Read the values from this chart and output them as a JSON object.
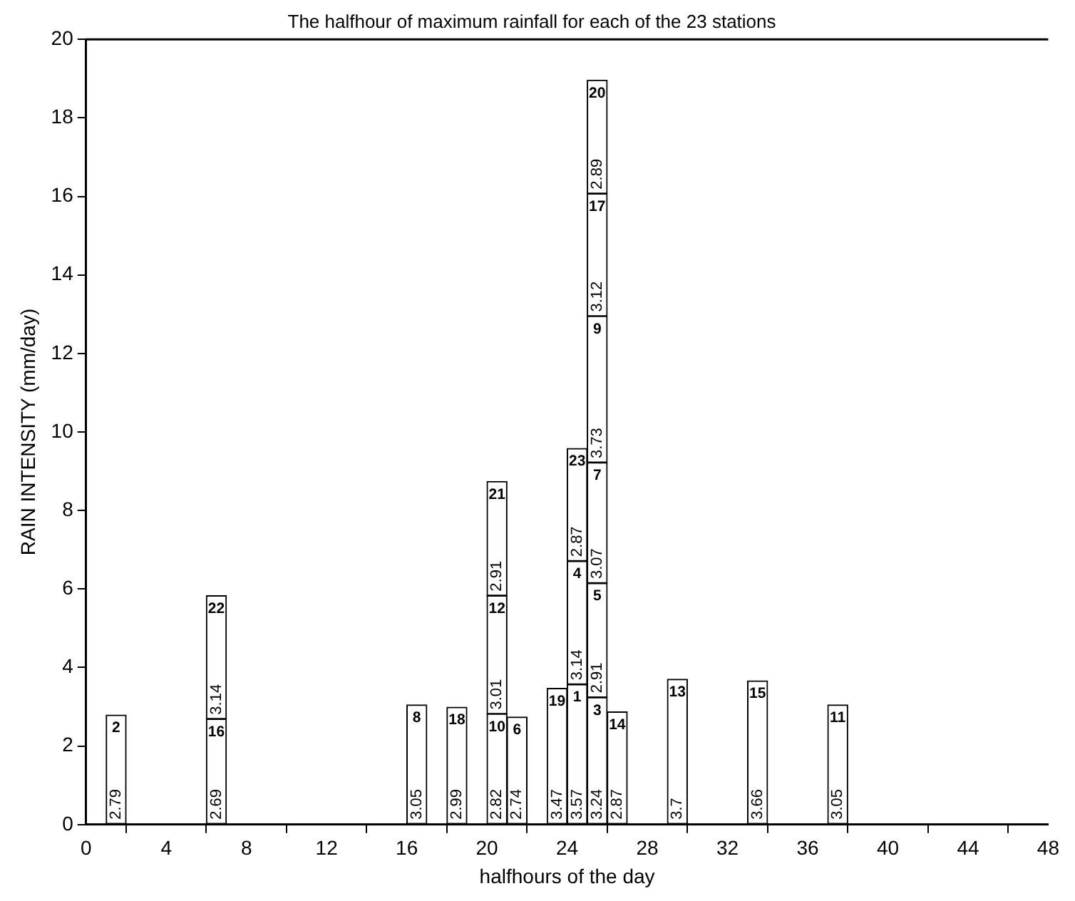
{
  "chart_data": {
    "type": "bar",
    "stacked": true,
    "title": "The halfhour of maximum rainfall for each of the 23 stations",
    "xlabel": "halfhours of the day",
    "ylabel": "RAIN INTENSITY (mm/day)",
    "x": [
      1.5,
      6.5,
      16.5,
      18.5,
      20.5,
      21.5,
      23.5,
      24.5,
      25.5,
      26.5,
      29.5,
      33.5,
      37.5
    ],
    "series": [
      {
        "color": "#ffffff",
        "values": [
          2.79,
          2.69,
          3.05,
          2.99,
          2.82,
          2.74,
          3.47,
          3.57,
          3.24,
          2.87,
          3.7,
          3.66,
          3.05
        ],
        "value_labels": [
          "2.79",
          "2.69",
          "3.05",
          "2.99",
          "2.82",
          "2.74",
          "3.47",
          "3.57",
          "3.24",
          "2.87",
          "3.7",
          "3.66",
          "3.05"
        ]
      },
      {
        "color": "#ffffff",
        "values": [
          null,
          3.14,
          null,
          null,
          3.01,
          null,
          null,
          3.14,
          2.91,
          null,
          null,
          null,
          null
        ],
        "value_labels": [
          null,
          "3.14",
          null,
          null,
          "3.01",
          null,
          null,
          "3.14",
          "2.91",
          null,
          null,
          null,
          null
        ]
      },
      {
        "color": "#ffffff",
        "values": [
          null,
          null,
          null,
          null,
          2.91,
          null,
          null,
          2.87,
          3.07,
          null,
          null,
          null,
          null
        ],
        "value_labels": [
          null,
          null,
          null,
          null,
          "2.91",
          null,
          null,
          "2.87",
          "3.07",
          null,
          null,
          null,
          null
        ]
      },
      {
        "color": "#ffffff",
        "values": [
          null,
          null,
          null,
          null,
          null,
          null,
          null,
          null,
          3.73,
          null,
          null,
          null,
          null
        ],
        "value_labels": [
          null,
          null,
          null,
          null,
          null,
          null,
          null,
          null,
          "3.73",
          null,
          null,
          null,
          null
        ]
      },
      {
        "color": "#ffffff",
        "values": [
          null,
          null,
          null,
          null,
          null,
          null,
          null,
          null,
          3.12,
          null,
          null,
          null,
          null
        ],
        "value_labels": [
          null,
          null,
          null,
          null,
          null,
          null,
          null,
          null,
          "3.12",
          null,
          null,
          null,
          null
        ]
      },
      {
        "color": "#ffffff",
        "values": [
          null,
          null,
          null,
          null,
          null,
          null,
          null,
          null,
          2.89,
          null,
          null,
          null,
          null
        ],
        "value_labels": [
          null,
          null,
          null,
          null,
          null,
          null,
          null,
          null,
          "2.89",
          null,
          null,
          null,
          null
        ]
      }
    ],
    "annotations": [
      {
        "text": "2",
        "x": 1.5,
        "y": 2.79
      },
      {
        "text": "16",
        "x": 6.5,
        "y": 2.69
      },
      {
        "text": "22",
        "x": 6.5,
        "y": 5.83
      },
      {
        "text": "8",
        "x": 16.5,
        "y": 3.05
      },
      {
        "text": "18",
        "x": 18.5,
        "y": 2.99
      },
      {
        "text": "10",
        "x": 20.5,
        "y": 2.82
      },
      {
        "text": "12",
        "x": 20.5,
        "y": 5.83
      },
      {
        "text": "21",
        "x": 20.5,
        "y": 8.74
      },
      {
        "text": "6",
        "x": 21.5,
        "y": 2.74
      },
      {
        "text": "19",
        "x": 23.5,
        "y": 3.47
      },
      {
        "text": "1",
        "x": 24.5,
        "y": 3.57
      },
      {
        "text": "4",
        "x": 24.5,
        "y": 6.71
      },
      {
        "text": "23",
        "x": 24.5,
        "y": 9.58
      },
      {
        "text": "3",
        "x": 25.5,
        "y": 3.24
      },
      {
        "text": "5",
        "x": 25.5,
        "y": 6.15
      },
      {
        "text": "7",
        "x": 25.5,
        "y": 9.22
      },
      {
        "text": "9",
        "x": 25.5,
        "y": 12.95
      },
      {
        "text": "17",
        "x": 25.5,
        "y": 16.07
      },
      {
        "text": "20",
        "x": 25.5,
        "y": 18.96
      },
      {
        "text": "14",
        "x": 26.5,
        "y": 2.87
      },
      {
        "text": "13",
        "x": 29.5,
        "y": 3.7
      },
      {
        "text": "15",
        "x": 33.5,
        "y": 3.66
      },
      {
        "text": "11",
        "x": 37.5,
        "y": 3.05
      }
    ],
    "xlim": [
      0,
      48
    ],
    "xticks": [
      0,
      4,
      8,
      12,
      16,
      20,
      24,
      28,
      32,
      36,
      40,
      44,
      48
    ],
    "ylim": [
      0,
      20
    ],
    "yticks": [
      0,
      2,
      4,
      6,
      8,
      10,
      12,
      14,
      16,
      18,
      20
    ],
    "grid": false,
    "legend": false
  }
}
